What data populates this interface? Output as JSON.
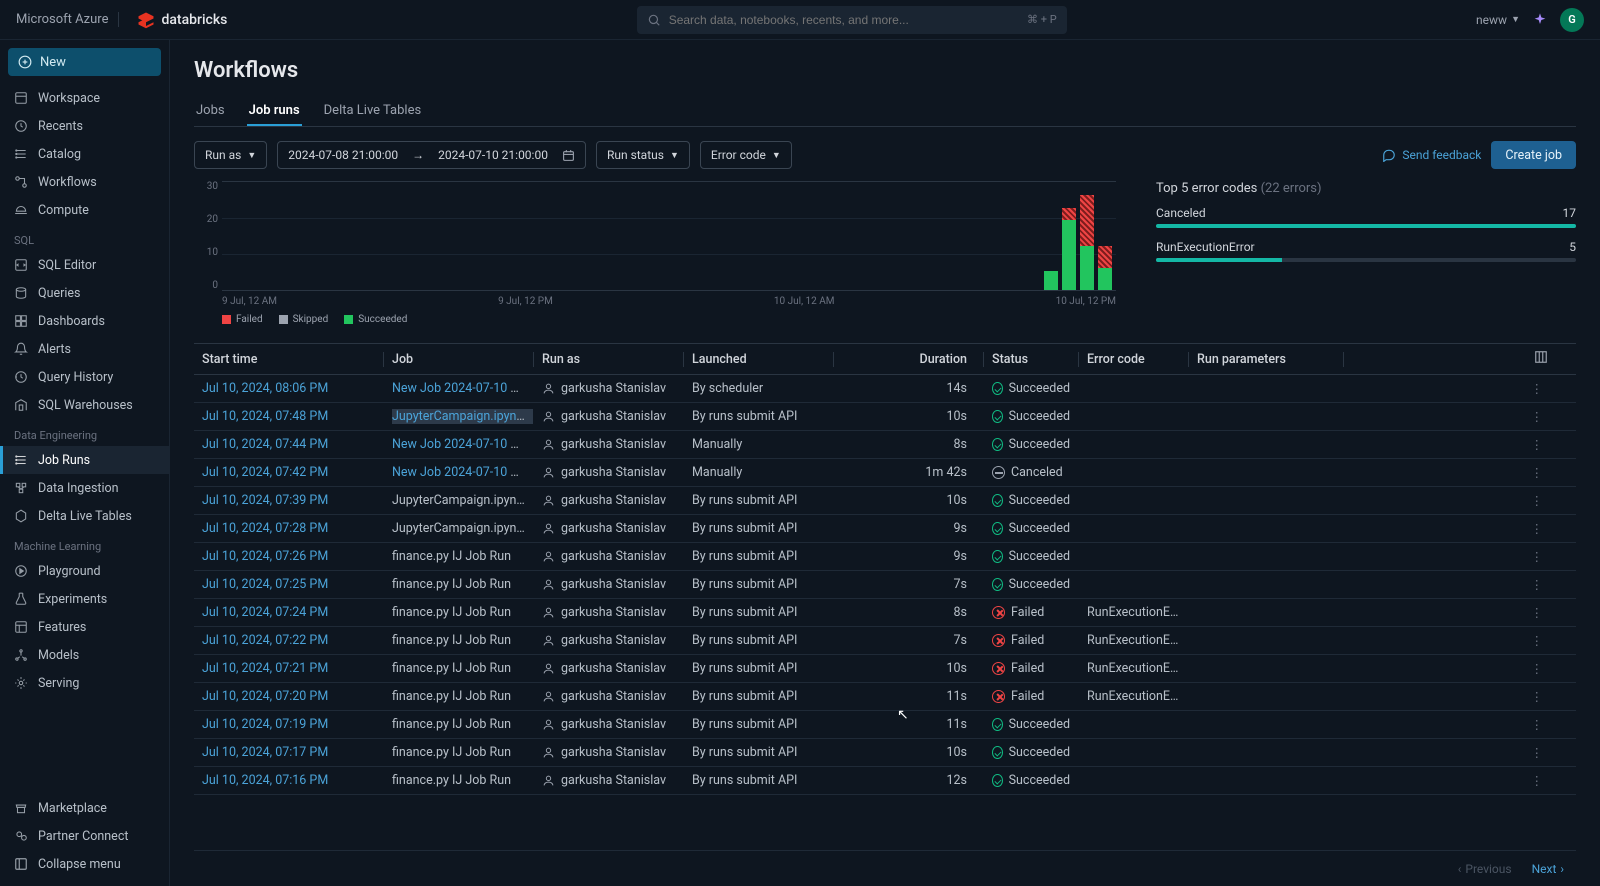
{
  "topbar": {
    "azure": "Microsoft Azure",
    "brand": "databricks",
    "search_placeholder": "Search data, notebooks, recents, and more...",
    "search_kbd": "⌘ + P",
    "user_label": "neww",
    "avatar_initial": "G"
  },
  "sidebar": {
    "new": "New",
    "main": [
      {
        "icon": "workspace",
        "label": "Workspace"
      },
      {
        "icon": "recents",
        "label": "Recents"
      },
      {
        "icon": "catalog",
        "label": "Catalog"
      },
      {
        "icon": "workflows",
        "label": "Workflows"
      },
      {
        "icon": "compute",
        "label": "Compute"
      }
    ],
    "sql_label": "SQL",
    "sql": [
      {
        "icon": "sqleditor",
        "label": "SQL Editor"
      },
      {
        "icon": "queries",
        "label": "Queries"
      },
      {
        "icon": "dashboards",
        "label": "Dashboards"
      },
      {
        "icon": "alerts",
        "label": "Alerts"
      },
      {
        "icon": "history",
        "label": "Query History"
      },
      {
        "icon": "warehouses",
        "label": "SQL Warehouses"
      }
    ],
    "de_label": "Data Engineering",
    "de": [
      {
        "icon": "jobruns",
        "label": "Job Runs",
        "active": true
      },
      {
        "icon": "ingestion",
        "label": "Data Ingestion"
      },
      {
        "icon": "dlt",
        "label": "Delta Live Tables"
      }
    ],
    "ml_label": "Machine Learning",
    "ml": [
      {
        "icon": "playground",
        "label": "Playground"
      },
      {
        "icon": "experiments",
        "label": "Experiments"
      },
      {
        "icon": "features",
        "label": "Features"
      },
      {
        "icon": "models",
        "label": "Models"
      },
      {
        "icon": "serving",
        "label": "Serving"
      }
    ],
    "bottom": [
      {
        "icon": "marketplace",
        "label": "Marketplace"
      },
      {
        "icon": "partner",
        "label": "Partner Connect"
      }
    ],
    "collapse": "Collapse menu"
  },
  "page": {
    "title": "Workflows",
    "tabs": [
      "Jobs",
      "Job runs",
      "Delta Live Tables"
    ],
    "active_tab": 1
  },
  "filters": {
    "run_as": "Run as",
    "date_from": "2024-07-08 21:00:00",
    "date_to": "2024-07-10 21:00:00",
    "run_status": "Run status",
    "error_code": "Error code",
    "feedback": "Send feedback",
    "create": "Create job"
  },
  "chart": {
    "y_ticks": [
      "30",
      "20",
      "10",
      "0"
    ],
    "x_ticks": [
      "9 Jul, 12 AM",
      "9 Jul, 12 PM",
      "10 Jul, 12 AM",
      "10 Jul, 12 PM"
    ],
    "legend": [
      {
        "label": "Failed",
        "color": "#ef4444"
      },
      {
        "label": "Skipped",
        "color": "#9ca3af"
      },
      {
        "label": "Succeeded",
        "color": "#22c55e"
      }
    ],
    "bars": [
      {
        "left_pct": 92.0,
        "segs": [
          {
            "h": 6,
            "c": "#22c55e"
          }
        ]
      },
      {
        "left_pct": 94.0,
        "segs": [
          {
            "h": 22,
            "c": "#22c55e"
          },
          {
            "h": 4,
            "c": "#ef4444",
            "hatch": true
          }
        ]
      },
      {
        "left_pct": 96.0,
        "segs": [
          {
            "h": 14,
            "c": "#22c55e"
          },
          {
            "h": 16,
            "c": "#ef4444",
            "hatch": true
          }
        ]
      },
      {
        "left_pct": 98.0,
        "segs": [
          {
            "h": 7,
            "c": "#22c55e"
          },
          {
            "h": 7,
            "c": "#ef4444",
            "hatch": true
          }
        ]
      }
    ],
    "y_max": 30
  },
  "errors": {
    "title": "Top 5 error codes",
    "subtitle": "(22 errors)",
    "rows": [
      {
        "label": "Canceled",
        "count": 17,
        "pct": 100
      },
      {
        "label": "RunExecutionError",
        "count": 5,
        "pct": 30
      }
    ]
  },
  "table": {
    "columns": [
      "Start time",
      "Job",
      "Run as",
      "Launched",
      "Duration",
      "Status",
      "Error code",
      "Run parameters"
    ],
    "user": "garkusha Stanislav",
    "rows": [
      {
        "start": "Jul 10, 2024, 08:06 PM",
        "job": "New Job 2024-07-10 1...",
        "job_link": true,
        "launched": "By scheduler",
        "dur": "14s",
        "status": "Succeeded"
      },
      {
        "start": "Jul 10, 2024, 07:48 PM",
        "job": "JupyterCampaign.ipynb I...",
        "job_link": true,
        "job_hl": true,
        "launched": "By runs submit API",
        "dur": "10s",
        "status": "Succeeded"
      },
      {
        "start": "Jul 10, 2024, 07:44 PM",
        "job": "New Job 2024-07-10 1...",
        "job_link": true,
        "launched": "Manually",
        "dur": "8s",
        "status": "Succeeded"
      },
      {
        "start": "Jul 10, 2024, 07:42 PM",
        "job": "New Job 2024-07-10 1...",
        "job_link": true,
        "launched": "Manually",
        "dur": "1m 42s",
        "status": "Canceled"
      },
      {
        "start": "Jul 10, 2024, 07:39 PM",
        "job": "JupyterCampaign.ipynb I...",
        "launched": "By runs submit API",
        "dur": "10s",
        "status": "Succeeded"
      },
      {
        "start": "Jul 10, 2024, 07:28 PM",
        "job": "JupyterCampaign.ipynb I...",
        "launched": "By runs submit API",
        "dur": "9s",
        "status": "Succeeded"
      },
      {
        "start": "Jul 10, 2024, 07:26 PM",
        "job": "finance.py IJ Job Run",
        "launched": "By runs submit API",
        "dur": "9s",
        "status": "Succeeded"
      },
      {
        "start": "Jul 10, 2024, 07:25 PM",
        "job": "finance.py IJ Job Run",
        "launched": "By runs submit API",
        "dur": "7s",
        "status": "Succeeded"
      },
      {
        "start": "Jul 10, 2024, 07:24 PM",
        "job": "finance.py IJ Job Run",
        "launched": "By runs submit API",
        "dur": "8s",
        "status": "Failed",
        "err": "RunExecutionError"
      },
      {
        "start": "Jul 10, 2024, 07:22 PM",
        "job": "finance.py IJ Job Run",
        "launched": "By runs submit API",
        "dur": "7s",
        "status": "Failed",
        "err": "RunExecutionError"
      },
      {
        "start": "Jul 10, 2024, 07:21 PM",
        "job": "finance.py IJ Job Run",
        "launched": "By runs submit API",
        "dur": "10s",
        "status": "Failed",
        "err": "RunExecutionError"
      },
      {
        "start": "Jul 10, 2024, 07:20 PM",
        "job": "finance.py IJ Job Run",
        "launched": "By runs submit API",
        "dur": "11s",
        "status": "Failed",
        "err": "RunExecutionError"
      },
      {
        "start": "Jul 10, 2024, 07:19 PM",
        "job": "finance.py IJ Job Run",
        "launched": "By runs submit API",
        "dur": "11s",
        "status": "Succeeded"
      },
      {
        "start": "Jul 10, 2024, 07:17 PM",
        "job": "finance.py IJ Job Run",
        "launched": "By runs submit API",
        "dur": "10s",
        "status": "Succeeded"
      },
      {
        "start": "Jul 10, 2024, 07:16 PM",
        "job": "finance.py IJ Job Run",
        "launched": "By runs submit API",
        "dur": "12s",
        "status": "Succeeded"
      }
    ]
  },
  "pagination": {
    "prev": "Previous",
    "next": "Next"
  }
}
